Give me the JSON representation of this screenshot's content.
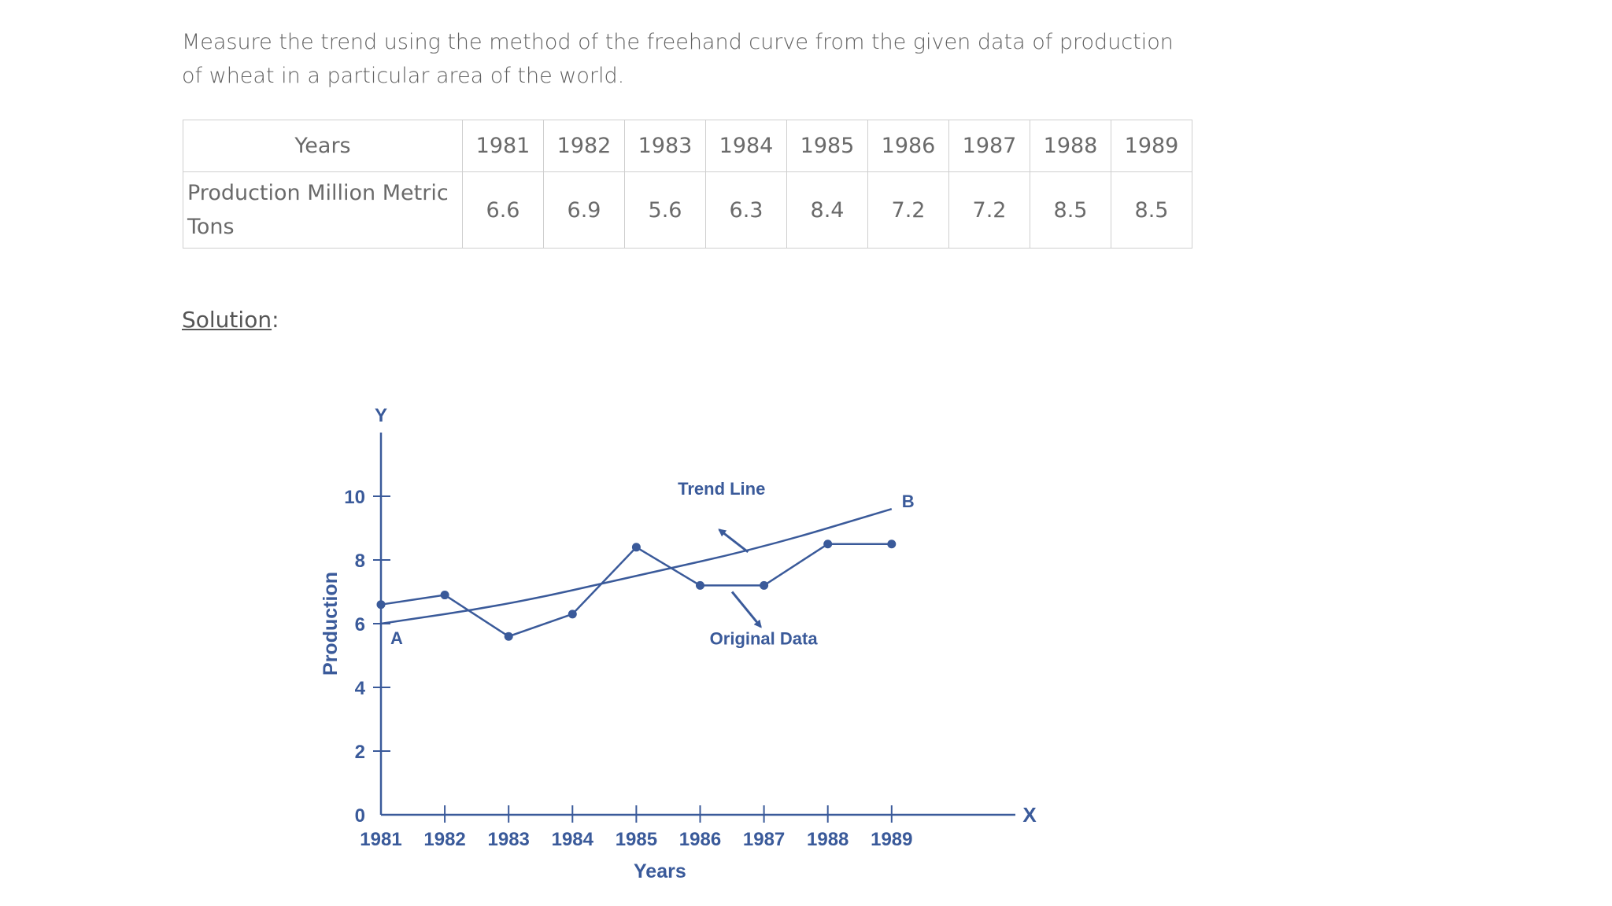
{
  "question": "Measure the trend using the method of the freehand curve from the given data of production of wheat in a particular area of the world.",
  "table": {
    "header_label": "Years",
    "row_label": "Production Million Metric Tons",
    "years": [
      "1981",
      "1982",
      "1983",
      "1984",
      "1985",
      "1986",
      "1987",
      "1988",
      "1989"
    ],
    "values": [
      "6.6",
      "6.9",
      "5.6",
      "6.3",
      "8.4",
      "7.2",
      "7.2",
      "8.5",
      "8.5"
    ]
  },
  "solution": {
    "word": "Solution",
    "colon": ":"
  },
  "chart_data": {
    "type": "line",
    "x": [
      1981,
      1982,
      1983,
      1984,
      1985,
      1986,
      1987,
      1988,
      1989
    ],
    "x_tick_labels": [
      "1981",
      "1982",
      "1983",
      "1984",
      "1985",
      "1986",
      "1987",
      "1988",
      "1989"
    ],
    "series": [
      {
        "name": "Original Data",
        "values": [
          6.6,
          6.9,
          5.6,
          6.3,
          8.4,
          7.2,
          7.2,
          8.5,
          8.5
        ]
      },
      {
        "name": "Trend Line",
        "points": [
          [
            1981,
            6.0
          ],
          [
            1983,
            6.6
          ],
          [
            1985,
            7.5
          ],
          [
            1987,
            8.4
          ],
          [
            1989,
            9.6
          ]
        ]
      }
    ],
    "y_ticks": [
      0,
      2,
      4,
      6,
      8,
      10
    ],
    "y_tick_labels": [
      "0",
      "2",
      "4",
      "6",
      "8",
      "10"
    ],
    "ylim": [
      0,
      12
    ],
    "xlabel": "Years",
    "ylabel": "Production",
    "x_axis_letter": "X",
    "y_axis_letter": "Y",
    "annotations": {
      "start_point": "A",
      "end_point": "B",
      "trend_label": "Trend Line",
      "original_label": "Original Data"
    },
    "color": "#3a5a9a"
  }
}
